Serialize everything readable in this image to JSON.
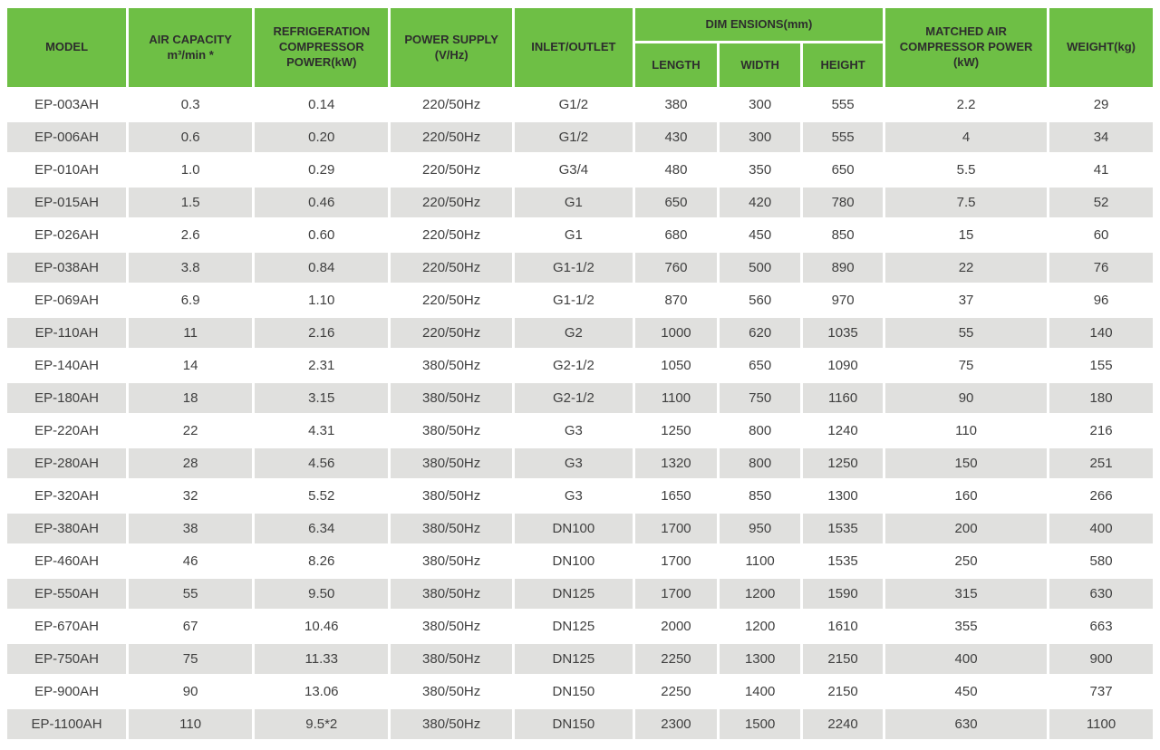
{
  "colors": {
    "header_green": "#6ebf45",
    "row_alt_gray": "#e0e0de",
    "header_text": "#2d2d2d",
    "body_text": "#3f3f3f"
  },
  "table": {
    "headers": {
      "model": "MODEL",
      "air_capacity": "AIR CAPACITY\nm³/min *",
      "refrigeration_power": "REFRIGERATION\nCOMPRESSOR\nPOWER(kW)",
      "power_supply": "POWER SUPPLY\n(V/Hz)",
      "inlet_outlet": "INLET/OUTLET",
      "dimensions_group": "DIM ENSIONS(mm)",
      "length": "LENGTH",
      "width": "WIDTH",
      "height": "HEIGHT",
      "matched_power": "MATCHED AIR\nCOMPRESSOR POWER\n(kW)",
      "weight": "WEIGHT(kg)"
    },
    "rows": [
      [
        "EP-003AH",
        "0.3",
        "0.14",
        "220/50Hz",
        "G1/2",
        "380",
        "300",
        "555",
        "2.2",
        "29"
      ],
      [
        "EP-006AH",
        "0.6",
        "0.20",
        "220/50Hz",
        "G1/2",
        "430",
        "300",
        "555",
        "4",
        "34"
      ],
      [
        "EP-010AH",
        "1.0",
        "0.29",
        "220/50Hz",
        "G3/4",
        "480",
        "350",
        "650",
        "5.5",
        "41"
      ],
      [
        "EP-015AH",
        "1.5",
        "0.46",
        "220/50Hz",
        "G1",
        "650",
        "420",
        "780",
        "7.5",
        "52"
      ],
      [
        "EP-026AH",
        "2.6",
        "0.60",
        "220/50Hz",
        "G1",
        "680",
        "450",
        "850",
        "15",
        "60"
      ],
      [
        "EP-038AH",
        "3.8",
        "0.84",
        "220/50Hz",
        "G1-1/2",
        "760",
        "500",
        "890",
        "22",
        "76"
      ],
      [
        "EP-069AH",
        "6.9",
        "1.10",
        "220/50Hz",
        "G1-1/2",
        "870",
        "560",
        "970",
        "37",
        "96"
      ],
      [
        "EP-110AH",
        "11",
        "2.16",
        "220/50Hz",
        "G2",
        "1000",
        "620",
        "1035",
        "55",
        "140"
      ],
      [
        "EP-140AH",
        "14",
        "2.31",
        "380/50Hz",
        "G2-1/2",
        "1050",
        "650",
        "1090",
        "75",
        "155"
      ],
      [
        "EP-180AH",
        "18",
        "3.15",
        "380/50Hz",
        "G2-1/2",
        "1100",
        "750",
        "1160",
        "90",
        "180"
      ],
      [
        "EP-220AH",
        "22",
        "4.31",
        "380/50Hz",
        "G3",
        "1250",
        "800",
        "1240",
        "110",
        "216"
      ],
      [
        "EP-280AH",
        "28",
        "4.56",
        "380/50Hz",
        "G3",
        "1320",
        "800",
        "1250",
        "150",
        "251"
      ],
      [
        "EP-320AH",
        "32",
        "5.52",
        "380/50Hz",
        "G3",
        "1650",
        "850",
        "1300",
        "160",
        "266"
      ],
      [
        "EP-380AH",
        "38",
        "6.34",
        "380/50Hz",
        "DN100",
        "1700",
        "950",
        "1535",
        "200",
        "400"
      ],
      [
        "EP-460AH",
        "46",
        "8.26",
        "380/50Hz",
        "DN100",
        "1700",
        "1100",
        "1535",
        "250",
        "580"
      ],
      [
        "EP-550AH",
        "55",
        "9.50",
        "380/50Hz",
        "DN125",
        "1700",
        "1200",
        "1590",
        "315",
        "630"
      ],
      [
        "EP-670AH",
        "67",
        "10.46",
        "380/50Hz",
        "DN125",
        "2000",
        "1200",
        "1610",
        "355",
        "663"
      ],
      [
        "EP-750AH",
        "75",
        "11.33",
        "380/50Hz",
        "DN125",
        "2250",
        "1300",
        "2150",
        "400",
        "900"
      ],
      [
        "EP-900AH",
        "90",
        "13.06",
        "380/50Hz",
        "DN150",
        "2250",
        "1400",
        "2150",
        "450",
        "737"
      ],
      [
        "EP-1100AH",
        "110",
        "9.5*2",
        "380/50Hz",
        "DN150",
        "2300",
        "1500",
        "2240",
        "630",
        "1100"
      ]
    ]
  }
}
